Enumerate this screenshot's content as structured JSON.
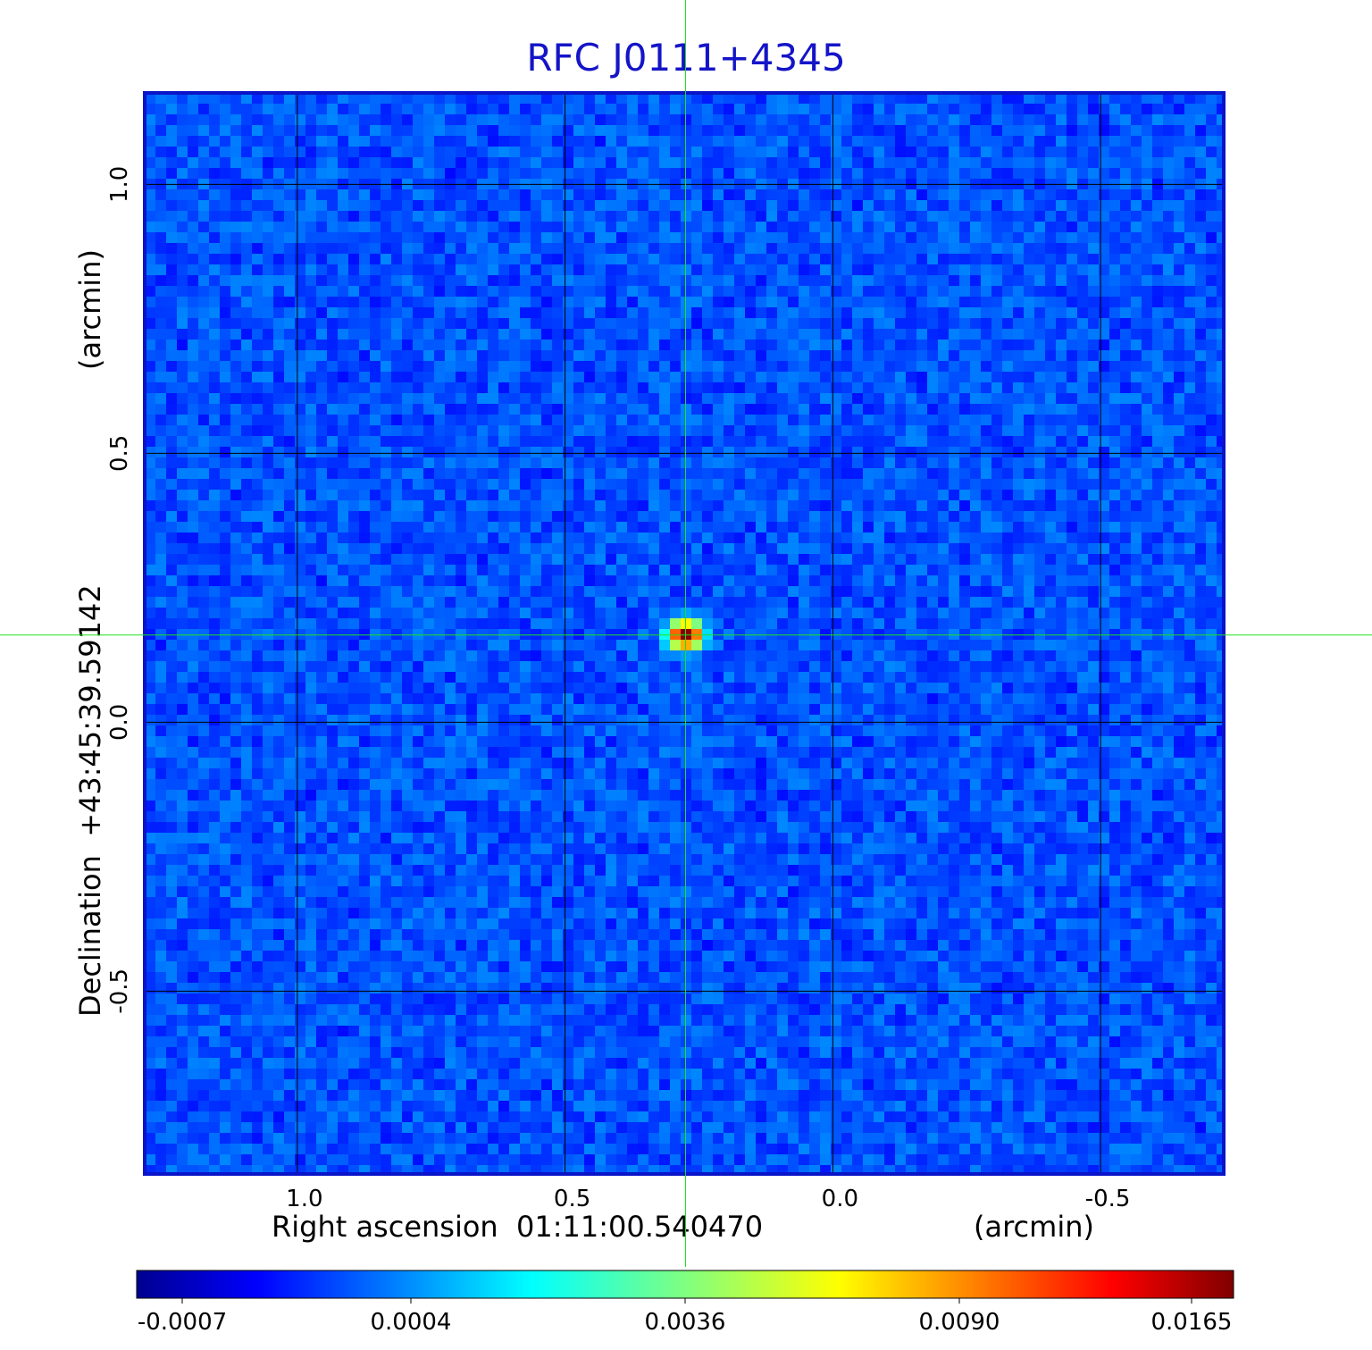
{
  "title": "RFC J0111+4345",
  "chart_data": {
    "type": "heatmap",
    "title": "RFC J0111+4345",
    "xlabel": "Right ascension  01:11:00.540470",
    "xunit": "(arcmin)",
    "ylabel": "Declination  +43:45:39.59142",
    "yunit": "(arcmin)",
    "xlim": [
      1.285,
      -0.73
    ],
    "ylim": [
      -0.84,
      1.17
    ],
    "x_ticks": [
      "1.0",
      "0.5",
      "0.0",
      "-0.5"
    ],
    "x_tick_values": [
      1.0,
      0.5,
      0.0,
      -0.5
    ],
    "y_ticks": [
      "1.0",
      "0.5",
      "0.0",
      "-0.5"
    ],
    "y_tick_values": [
      1.0,
      0.5,
      0.0,
      -0.5
    ],
    "grid": true,
    "crosshair": {
      "x": 0.275,
      "y": 0.162
    },
    "sources": [
      {
        "x": 0.275,
        "y": 0.162,
        "peak": 0.0165
      }
    ],
    "noise_floor": 0.0002,
    "colorbar": {
      "colormap": "jet",
      "ticks": [
        "-0.0007",
        "0.0004",
        "0.0036",
        "0.0090",
        "0.0165"
      ],
      "tick_values": [
        -0.0007,
        0.0004,
        0.0036,
        0.009,
        0.0165
      ]
    }
  },
  "colors": {
    "title": "#1414c8",
    "frame": "#0a14c8",
    "crosshair": "#20e020",
    "grid": "#000000"
  }
}
